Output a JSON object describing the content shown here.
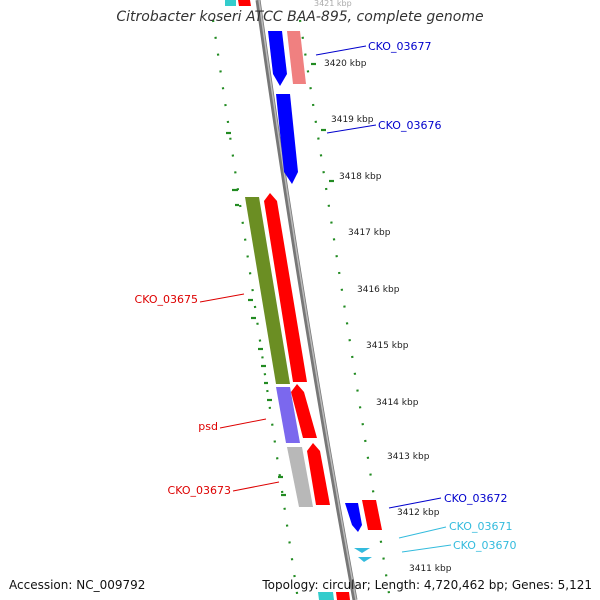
{
  "title": "Citrobacter koseri ATCC BAA-895, complete genome",
  "accession": "Accession: NC_009792",
  "stats": "Topology: circular; Length: 4,720,462 bp; Genes: 5,121",
  "tick_top_partial": "3421 kbp",
  "ticks": [
    {
      "label": "3420 kbp"
    },
    {
      "label": "3419 kbp"
    },
    {
      "label": "3418 kbp"
    },
    {
      "label": "3417 kbp"
    },
    {
      "label": "3416 kbp"
    },
    {
      "label": "3415 kbp"
    },
    {
      "label": "3414 kbp"
    },
    {
      "label": "3413 kbp"
    },
    {
      "label": "3412 kbp"
    },
    {
      "label": "3411 kbp"
    }
  ],
  "gene_labels": [
    {
      "text": "CKO_03677",
      "color": "#0000cc"
    },
    {
      "text": "CKO_03676",
      "color": "#0000cc"
    },
    {
      "text": "CKO_03675",
      "color": "#dd0000"
    },
    {
      "text": "psd",
      "color": "#dd0000"
    },
    {
      "text": "CKO_03673",
      "color": "#dd0000"
    },
    {
      "text": "CKO_03672",
      "color": "#0000cc"
    },
    {
      "text": "CKO_03671",
      "color": "#33bbdd"
    },
    {
      "text": "CKO_03670",
      "color": "#33bbdd"
    }
  ],
  "colors": {
    "forward_cds": "#ff0000",
    "reverse_cds": "#0000ff",
    "pink_cds": "#f08080",
    "olive_feature": "#6b8e23",
    "purple_feature": "#7b68ee",
    "gray_feature": "#b8b8b8",
    "trna": "#33bbdd",
    "backbone": "#888888",
    "gc_track": "#228b22"
  }
}
